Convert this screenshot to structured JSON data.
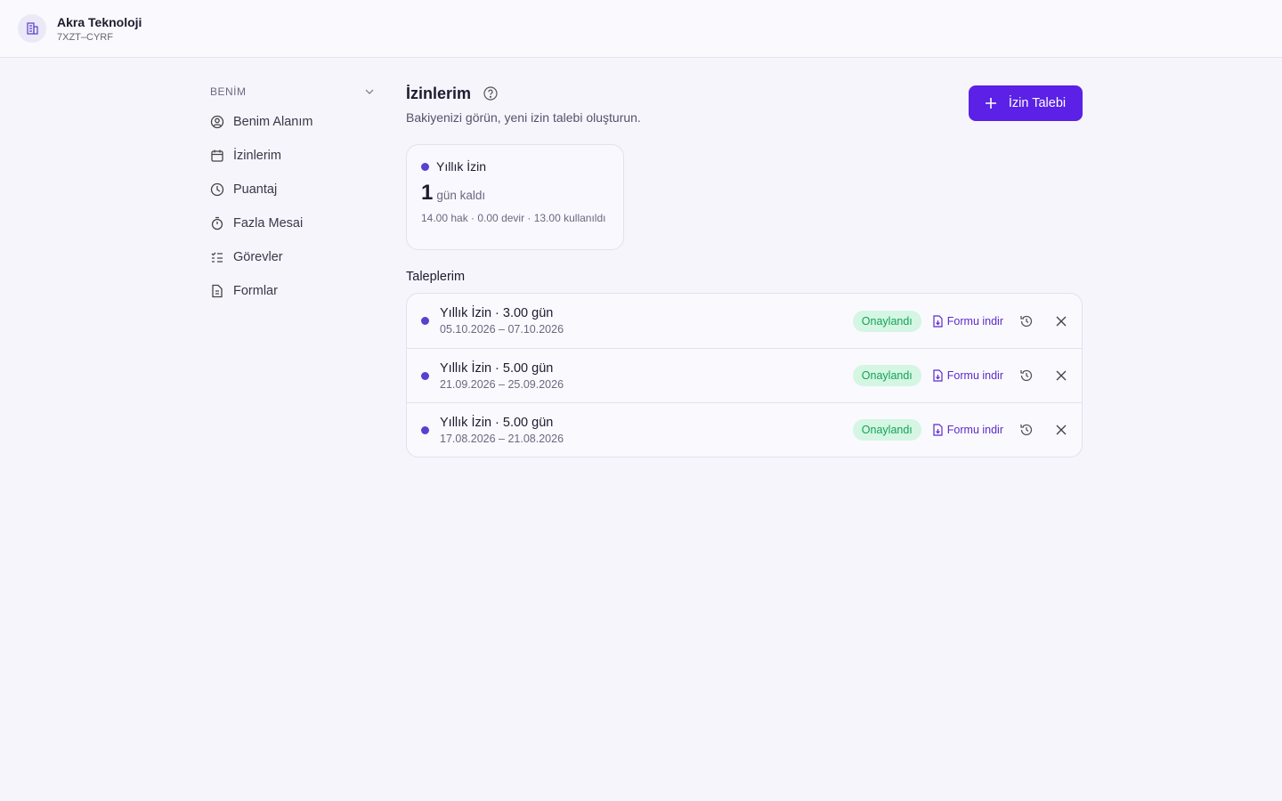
{
  "header": {
    "company": "Akra Teknoloji",
    "code": "7XZT–CYRF"
  },
  "sidebar": {
    "section": "BENİM",
    "items": [
      "Benim Alanım",
      "İzinlerim",
      "Puantaj",
      "Fazla Mesai",
      "Görevler",
      "Formlar"
    ]
  },
  "page": {
    "title": "İzinlerim",
    "subtitle": "Bakiyenizi görün, yeni izin talebi oluşturun.",
    "button": "İzin Talebi"
  },
  "balance": {
    "name": "Yıllık İzin",
    "amount": "1",
    "unit": "gün kaldı",
    "detail": "14.00 hak · 0.00 devir · 13.00 kullanıldı"
  },
  "requests": {
    "title": "Taleplerim",
    "rows": [
      {
        "title": "Yıllık İzin · 3.00 gün",
        "dates": "05.10.2026 – 07.10.2026",
        "status": "Onaylandı",
        "action": "Formu indir"
      },
      {
        "title": "Yıllık İzin · 5.00 gün",
        "dates": "21.09.2026 – 25.09.2026",
        "status": "Onaylandı",
        "action": "Formu indir"
      },
      {
        "title": "Yıllık İzin · 5.00 gün",
        "dates": "17.08.2026 – 21.08.2026",
        "status": "Onaylandı",
        "action": "Formu indir"
      }
    ]
  }
}
